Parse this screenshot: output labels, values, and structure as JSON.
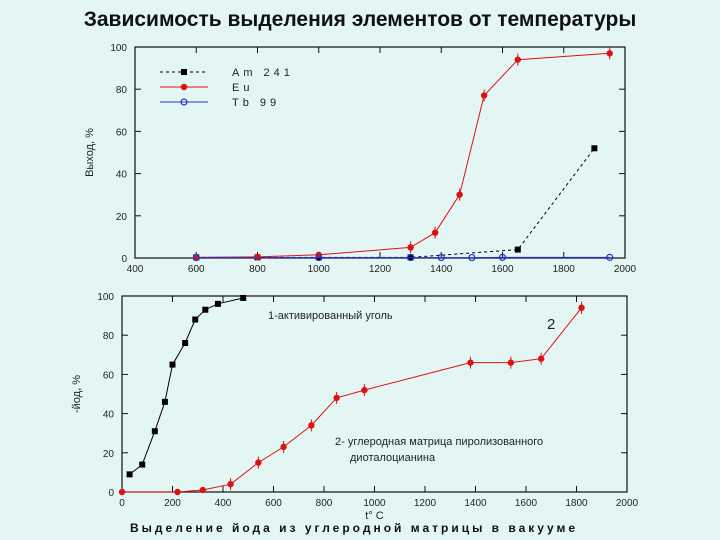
{
  "slide": {
    "title": "Зависимость выделения элементов от температуры",
    "caption": "Выделение йода из углеродной матрицы в вакууме"
  },
  "chart_data": [
    {
      "type": "scatter",
      "title": "",
      "xlabel": "",
      "ylabel": "Выход, %",
      "xlim": [
        400,
        2000
      ],
      "ylim": [
        0,
        100
      ],
      "xticks": [
        400,
        600,
        800,
        1000,
        1200,
        1400,
        1600,
        1800,
        2000
      ],
      "yticks": [
        0,
        20,
        40,
        60,
        80,
        100
      ],
      "ytick_labels": [
        "0",
        "20",
        "40",
        "60",
        "80",
        "100"
      ],
      "legend_position": "top-left",
      "series": [
        {
          "name": "Am 241",
          "color": "#000000",
          "marker": "square",
          "line": "dash",
          "x": [
            600,
            800,
            1000,
            1300,
            1650,
            1900
          ],
          "y": [
            0.3,
            0.3,
            0.3,
            0.3,
            4,
            52
          ]
        },
        {
          "name": "Eu",
          "color": "#dd1111",
          "marker": "circle",
          "line": "solid",
          "x": [
            600,
            800,
            1000,
            1300,
            1380,
            1460,
            1540,
            1650,
            1950
          ],
          "y": [
            0.3,
            0.5,
            1.5,
            5,
            12,
            30,
            77,
            94,
            97
          ]
        },
        {
          "name": "Tb 99",
          "color": "#2233cc",
          "marker": "open-circle",
          "line": "solid",
          "x": [
            600,
            1000,
            1300,
            1400,
            1500,
            1600,
            1950
          ],
          "y": [
            0.2,
            0.2,
            0.2,
            0.2,
            0.2,
            0.3,
            0.3
          ]
        }
      ]
    },
    {
      "type": "scatter",
      "title": "",
      "xlabel": "t° C",
      "ylabel": "-йод, %",
      "xlim": [
        0,
        2000
      ],
      "ylim": [
        0,
        100
      ],
      "xticks": [
        0,
        200,
        400,
        600,
        800,
        1000,
        1200,
        1400,
        1600,
        1800,
        2000
      ],
      "yticks": [
        0,
        20,
        40,
        60,
        80,
        100
      ],
      "annotations": {
        "series1": "1-активированный уголь",
        "series2_line1": "2- углеродная матрица пиролизованного",
        "series2_line2": "диоталоцианина",
        "label_2": "2"
      },
      "series": [
        {
          "name": "1",
          "color": "#000000",
          "marker": "square",
          "x": [
            30,
            80,
            130,
            170,
            200,
            250,
            290,
            330,
            380,
            480
          ],
          "y": [
            9,
            14,
            31,
            46,
            65,
            76,
            88,
            93,
            96,
            99
          ]
        },
        {
          "name": "2",
          "color": "#dd1111",
          "marker": "circle",
          "x": [
            0,
            220,
            320,
            430,
            540,
            640,
            750,
            850,
            960,
            1380,
            1540,
            1660,
            1820
          ],
          "y": [
            0,
            0,
            1,
            4,
            15,
            23,
            34,
            48,
            52,
            66,
            66,
            68,
            94
          ]
        }
      ]
    }
  ]
}
